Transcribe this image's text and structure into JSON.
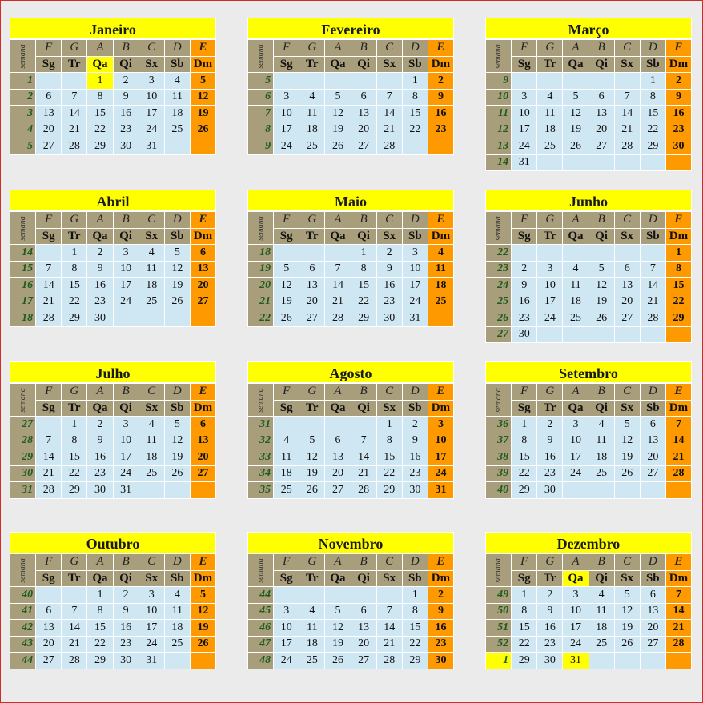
{
  "header": {
    "week_label": "semana",
    "letters": [
      "F",
      "G",
      "A",
      "B",
      "C",
      "D",
      "E"
    ],
    "days": [
      "Sg",
      "Tr",
      "Qa",
      "Qi",
      "Sx",
      "Sb",
      "Dm"
    ]
  },
  "colors": {
    "title": "#ffff00",
    "header": "#a99e7b",
    "sunday": "#ff9900",
    "day": "#cfe7f3",
    "highlight": "#ffff00",
    "week_number": "#1d5c1d"
  },
  "highlights": [
    {
      "month": "Janeiro",
      "day": 1,
      "weekday_header": "Qa"
    },
    {
      "month": "Dezembro",
      "day": 31,
      "weekday_header": "Qa",
      "week": 1
    }
  ],
  "months": [
    {
      "name": "Janeiro",
      "weeks": [
        1,
        2,
        3,
        4,
        5
      ],
      "rows": [
        [
          null,
          null,
          1,
          2,
          3,
          4,
          5
        ],
        [
          6,
          7,
          8,
          9,
          10,
          11,
          12
        ],
        [
          13,
          14,
          15,
          16,
          17,
          18,
          19
        ],
        [
          20,
          21,
          22,
          23,
          24,
          25,
          26
        ],
        [
          27,
          28,
          29,
          30,
          31,
          null,
          null
        ]
      ]
    },
    {
      "name": "Fevereiro",
      "weeks": [
        5,
        6,
        7,
        8,
        9
      ],
      "rows": [
        [
          null,
          null,
          null,
          null,
          null,
          1,
          2
        ],
        [
          3,
          4,
          5,
          6,
          7,
          8,
          9
        ],
        [
          10,
          11,
          12,
          13,
          14,
          15,
          16
        ],
        [
          17,
          18,
          19,
          20,
          21,
          22,
          23
        ],
        [
          24,
          25,
          26,
          27,
          28,
          null,
          null
        ]
      ]
    },
    {
      "name": "Março",
      "weeks": [
        9,
        10,
        11,
        12,
        13,
        14
      ],
      "rows": [
        [
          null,
          null,
          null,
          null,
          null,
          1,
          2
        ],
        [
          3,
          4,
          5,
          6,
          7,
          8,
          9
        ],
        [
          10,
          11,
          12,
          13,
          14,
          15,
          16
        ],
        [
          17,
          18,
          19,
          20,
          21,
          22,
          23
        ],
        [
          24,
          25,
          26,
          27,
          28,
          29,
          30
        ],
        [
          31,
          null,
          null,
          null,
          null,
          null,
          null
        ]
      ]
    },
    {
      "name": "Abril",
      "weeks": [
        14,
        15,
        16,
        17,
        18
      ],
      "rows": [
        [
          null,
          1,
          2,
          3,
          4,
          5,
          6
        ],
        [
          7,
          8,
          9,
          10,
          11,
          12,
          13
        ],
        [
          14,
          15,
          16,
          17,
          18,
          19,
          20
        ],
        [
          21,
          22,
          23,
          24,
          25,
          26,
          27
        ],
        [
          28,
          29,
          30,
          null,
          null,
          null,
          null
        ]
      ]
    },
    {
      "name": "Maio",
      "weeks": [
        18,
        19,
        20,
        21,
        22
      ],
      "rows": [
        [
          null,
          null,
          null,
          1,
          2,
          3,
          4
        ],
        [
          5,
          6,
          7,
          8,
          9,
          10,
          11
        ],
        [
          12,
          13,
          14,
          15,
          16,
          17,
          18
        ],
        [
          19,
          20,
          21,
          22,
          23,
          24,
          25
        ],
        [
          26,
          27,
          28,
          29,
          30,
          31,
          null
        ]
      ]
    },
    {
      "name": "Junho",
      "weeks": [
        22,
        23,
        24,
        25,
        26,
        27
      ],
      "rows": [
        [
          null,
          null,
          null,
          null,
          null,
          null,
          1
        ],
        [
          2,
          3,
          4,
          5,
          6,
          7,
          8
        ],
        [
          9,
          10,
          11,
          12,
          13,
          14,
          15
        ],
        [
          16,
          17,
          18,
          19,
          20,
          21,
          22
        ],
        [
          23,
          24,
          25,
          26,
          27,
          28,
          29
        ],
        [
          30,
          null,
          null,
          null,
          null,
          null,
          null
        ]
      ]
    },
    {
      "name": "Julho",
      "weeks": [
        27,
        28,
        29,
        30,
        31
      ],
      "rows": [
        [
          null,
          1,
          2,
          3,
          4,
          5,
          6
        ],
        [
          7,
          8,
          9,
          10,
          11,
          12,
          13
        ],
        [
          14,
          15,
          16,
          17,
          18,
          19,
          20
        ],
        [
          21,
          22,
          23,
          24,
          25,
          26,
          27
        ],
        [
          28,
          29,
          30,
          31,
          null,
          null,
          null
        ]
      ]
    },
    {
      "name": "Agosto",
      "weeks": [
        31,
        32,
        33,
        34,
        35
      ],
      "rows": [
        [
          null,
          null,
          null,
          null,
          1,
          2,
          3
        ],
        [
          4,
          5,
          6,
          7,
          8,
          9,
          10
        ],
        [
          11,
          12,
          13,
          14,
          15,
          16,
          17
        ],
        [
          18,
          19,
          20,
          21,
          22,
          23,
          24
        ],
        [
          25,
          26,
          27,
          28,
          29,
          30,
          31
        ]
      ]
    },
    {
      "name": "Setembro",
      "weeks": [
        36,
        37,
        38,
        39,
        40
      ],
      "rows": [
        [
          1,
          2,
          3,
          4,
          5,
          6,
          7
        ],
        [
          8,
          9,
          10,
          11,
          12,
          13,
          14
        ],
        [
          15,
          16,
          17,
          18,
          19,
          20,
          21
        ],
        [
          22,
          23,
          24,
          25,
          26,
          27,
          28
        ],
        [
          29,
          30,
          null,
          null,
          null,
          null,
          null
        ]
      ]
    },
    {
      "name": "Outubro",
      "weeks": [
        40,
        41,
        42,
        43,
        44
      ],
      "rows": [
        [
          null,
          null,
          1,
          2,
          3,
          4,
          5
        ],
        [
          6,
          7,
          8,
          9,
          10,
          11,
          12
        ],
        [
          13,
          14,
          15,
          16,
          17,
          18,
          19
        ],
        [
          20,
          21,
          22,
          23,
          24,
          25,
          26
        ],
        [
          27,
          28,
          29,
          30,
          31,
          null,
          null
        ]
      ]
    },
    {
      "name": "Novembro",
      "weeks": [
        44,
        45,
        46,
        47,
        48
      ],
      "rows": [
        [
          null,
          null,
          null,
          null,
          null,
          1,
          2
        ],
        [
          3,
          4,
          5,
          6,
          7,
          8,
          9
        ],
        [
          10,
          11,
          12,
          13,
          14,
          15,
          16
        ],
        [
          17,
          18,
          19,
          20,
          21,
          22,
          23
        ],
        [
          24,
          25,
          26,
          27,
          28,
          29,
          30
        ]
      ]
    },
    {
      "name": "Dezembro",
      "weeks": [
        49,
        50,
        51,
        52,
        1
      ],
      "rows": [
        [
          1,
          2,
          3,
          4,
          5,
          6,
          7
        ],
        [
          8,
          9,
          10,
          11,
          12,
          13,
          14
        ],
        [
          15,
          16,
          17,
          18,
          19,
          20,
          21
        ],
        [
          22,
          23,
          24,
          25,
          26,
          27,
          28
        ],
        [
          29,
          30,
          31,
          null,
          null,
          null,
          null
        ]
      ]
    }
  ]
}
